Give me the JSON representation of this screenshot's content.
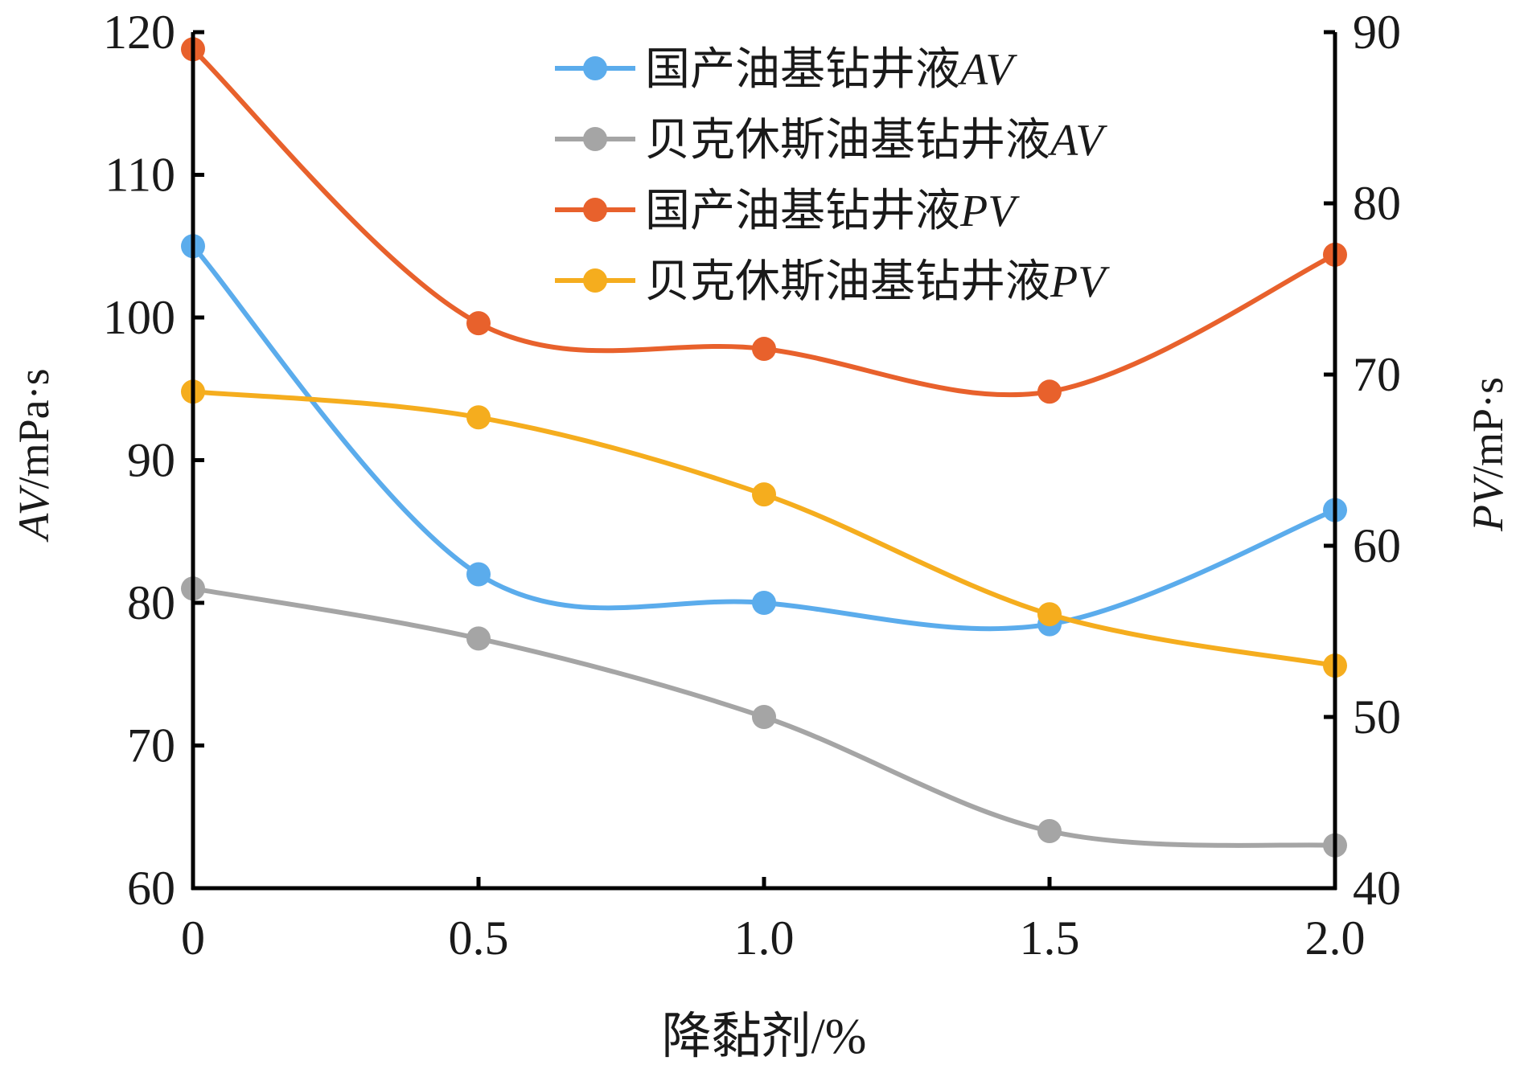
{
  "chart_data": {
    "type": "line",
    "title": "",
    "xlabel": "降黏剂/%",
    "ylabel_left": {
      "italic": "AV",
      "rest": "/mPa·s"
    },
    "ylabel_right": {
      "italic": "PV",
      "rest": "/mP·s"
    },
    "x": [
      0,
      0.5,
      1.0,
      1.5,
      2.0
    ],
    "x_tick_labels": [
      "0",
      "0.5",
      "1.0",
      "1.5",
      "2.0"
    ],
    "xlim": [
      0,
      2.0
    ],
    "ylim_left": [
      60,
      120
    ],
    "ylim_right": [
      40,
      90
    ],
    "y_ticks_left": [
      60,
      70,
      80,
      90,
      100,
      110,
      120
    ],
    "y_ticks_right": [
      40,
      50,
      60,
      70,
      80,
      90
    ],
    "grid": false,
    "legend_position": "top-center",
    "series": [
      {
        "name": "国产油基钻井液AV",
        "name_main": "国产油基钻井液",
        "name_suffix": "AV",
        "axis": "left",
        "color": "#5BACEC",
        "values": [
          105,
          82,
          80,
          78.5,
          86.5
        ]
      },
      {
        "name": "贝克休斯油基钻井液AV",
        "name_main": "贝克休斯油基钻井液",
        "name_suffix": "AV",
        "axis": "left",
        "color": "#A5A5A5",
        "values": [
          81,
          77.5,
          72,
          64,
          63
        ]
      },
      {
        "name": "国产油基钻井液PV",
        "name_main": "国产油基钻井液",
        "name_suffix": "PV",
        "axis": "right",
        "color": "#E8612C",
        "values": [
          89,
          73,
          71.5,
          69,
          77
        ]
      },
      {
        "name": "贝克休斯油基钻井液PV",
        "name_main": "贝克休斯油基钻井液",
        "name_suffix": "PV",
        "axis": "right",
        "color": "#F5AD1E",
        "values": [
          69,
          67.5,
          63,
          56,
          53
        ]
      }
    ]
  }
}
